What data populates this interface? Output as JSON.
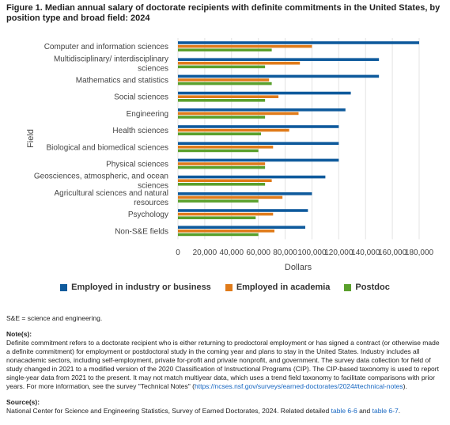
{
  "figure": {
    "title": "Figure 1. Median annual salary of doctorate recipients with definite commitments in the United States, by position type and broad field: 2024"
  },
  "colors": {
    "industry": "#0e5a9c",
    "academia": "#e07b1a",
    "postdoc": "#5aa02c"
  },
  "chart_data": {
    "type": "bar",
    "orientation": "horizontal",
    "ylabel": "Field",
    "xlabel": "Dollars",
    "xlim": [
      0,
      180000
    ],
    "xticks": [
      0,
      20000,
      40000,
      60000,
      80000,
      100000,
      120000,
      140000,
      160000,
      180000
    ],
    "xtick_labels": [
      "0",
      "20,000",
      "40,000",
      "60,000",
      "80,000",
      "100,000",
      "120,000",
      "140,000",
      "160,000",
      "180,000"
    ],
    "legend_position": "bottom",
    "categories": [
      [
        "Computer and information sciences"
      ],
      [
        "Multidisciplinary/ interdisciplinary",
        "sciences"
      ],
      [
        "Mathematics and statistics"
      ],
      [
        "Social sciences"
      ],
      [
        "Engineering"
      ],
      [
        "Health sciences"
      ],
      [
        "Biological and biomedical sciences"
      ],
      [
        "Physical sciences"
      ],
      [
        "Geosciences, atmospheric, and ocean",
        "sciences"
      ],
      [
        "Agricultural sciences and natural",
        "resources"
      ],
      [
        "Psychology"
      ],
      [
        "Non-S&E fields"
      ]
    ],
    "series": [
      {
        "name": "Employed in industry or business",
        "values": [
          180000,
          150000,
          150000,
          129000,
          125000,
          120000,
          120000,
          120000,
          110000,
          100000,
          97000,
          95000
        ]
      },
      {
        "name": "Employed in academia",
        "values": [
          100000,
          91000,
          68000,
          75000,
          90000,
          83000,
          71000,
          65000,
          70000,
          78000,
          71000,
          72000
        ]
      },
      {
        "name": "Postdoc",
        "values": [
          70000,
          65000,
          70000,
          65000,
          65000,
          62000,
          60000,
          65000,
          65000,
          60000,
          58000,
          60000
        ]
      }
    ]
  },
  "notes": {
    "abbrev": "S&E = science and engineering.",
    "notes_heading": "Note(s):",
    "notes_text": "Definite commitment refers to a doctorate recipient who is either returning to predoctoral employment or has signed a contract (or otherwise made a definite commitment) for employment or postdoctoral study in the coming year and plans to stay in the United States. Industry includes all nonacademic sectors, including self-employment, private for-profit and private nonprofit, and government. The survey data collection for field of study changed in 2021 to a modified version of the 2020 Classification of Instructional Programs (CIP). The CIP-based taxonomy is used to report single-year data from 2021 to the present. It may not match multiyear data, which uses a trend field taxonomy to facilitate comparisons with prior years. For more information, see the survey \"Technical Notes\" (",
    "notes_link": "https://ncses.nsf.gov/surveys/earned-doctorates/2024#technical-notes",
    "notes_end": ").",
    "source_heading": "Source(s):",
    "source_text": "National Center for Science and Engineering Statistics, Survey of Earned Doctorates, 2024. Related detailed ",
    "source_link1": "table 6-6",
    "source_and": " and ",
    "source_link2": "table 6-7",
    "source_end": "."
  }
}
